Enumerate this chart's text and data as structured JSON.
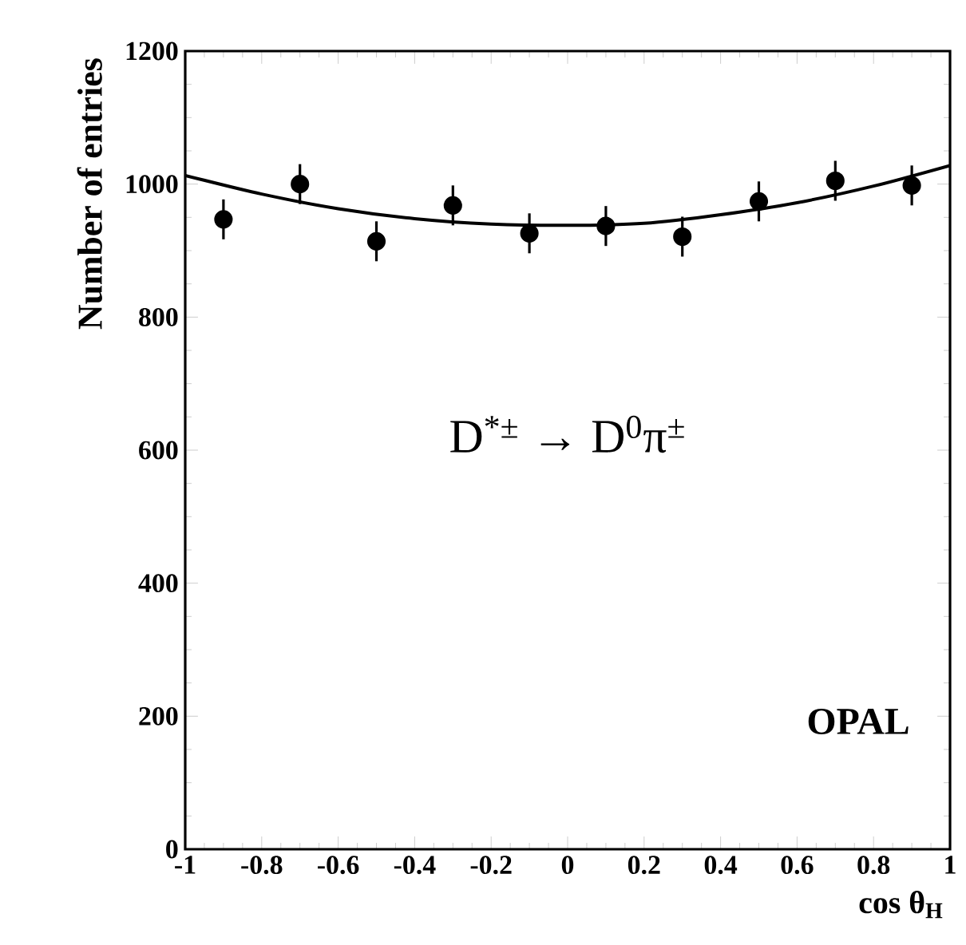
{
  "chart_data": {
    "type": "scatter",
    "xlabel": "cos θ$_{H}$",
    "ylabel": "Number of entries",
    "annotations": [
      "D$^{*±}$ → D$^{0}$π$^{±}$",
      "OPAL"
    ],
    "xlim": [
      -1,
      1
    ],
    "ylim": [
      0,
      1200
    ],
    "xticks": [
      {
        "value": -1,
        "label": "-1"
      },
      -0.8,
      -0.6,
      -0.4,
      -0.2,
      0,
      0.2,
      0.4,
      0.6,
      0.8,
      1
    ],
    "yticks": [
      0,
      200,
      400,
      600,
      800,
      1000,
      1200
    ],
    "grid": false,
    "marker": "circle",
    "series": [
      {
        "type": "scatter",
        "color": "#000000",
        "x": [
          -0.9,
          -0.7,
          -0.5,
          -0.3,
          -0.1,
          0.1,
          0.3,
          0.5,
          0.7,
          0.9
        ],
        "values": [
          947,
          1000,
          914,
          968,
          926,
          937,
          921,
          974,
          1005,
          998
        ],
        "errors": [
          30,
          30,
          30,
          30,
          30,
          30,
          30,
          30,
          30,
          30
        ]
      },
      {
        "type": "line",
        "color": "#000000",
        "marker": "none",
        "line_style": "solid",
        "x": [
          -1,
          -0.8,
          -0.6,
          -0.4,
          -0.2,
          0,
          0.2,
          0.4,
          0.6,
          0.8,
          1
        ],
        "values": [
          1013,
          985,
          963,
          948,
          940,
          938,
          941,
          954,
          972,
          997,
          1028
        ]
      }
    ]
  }
}
